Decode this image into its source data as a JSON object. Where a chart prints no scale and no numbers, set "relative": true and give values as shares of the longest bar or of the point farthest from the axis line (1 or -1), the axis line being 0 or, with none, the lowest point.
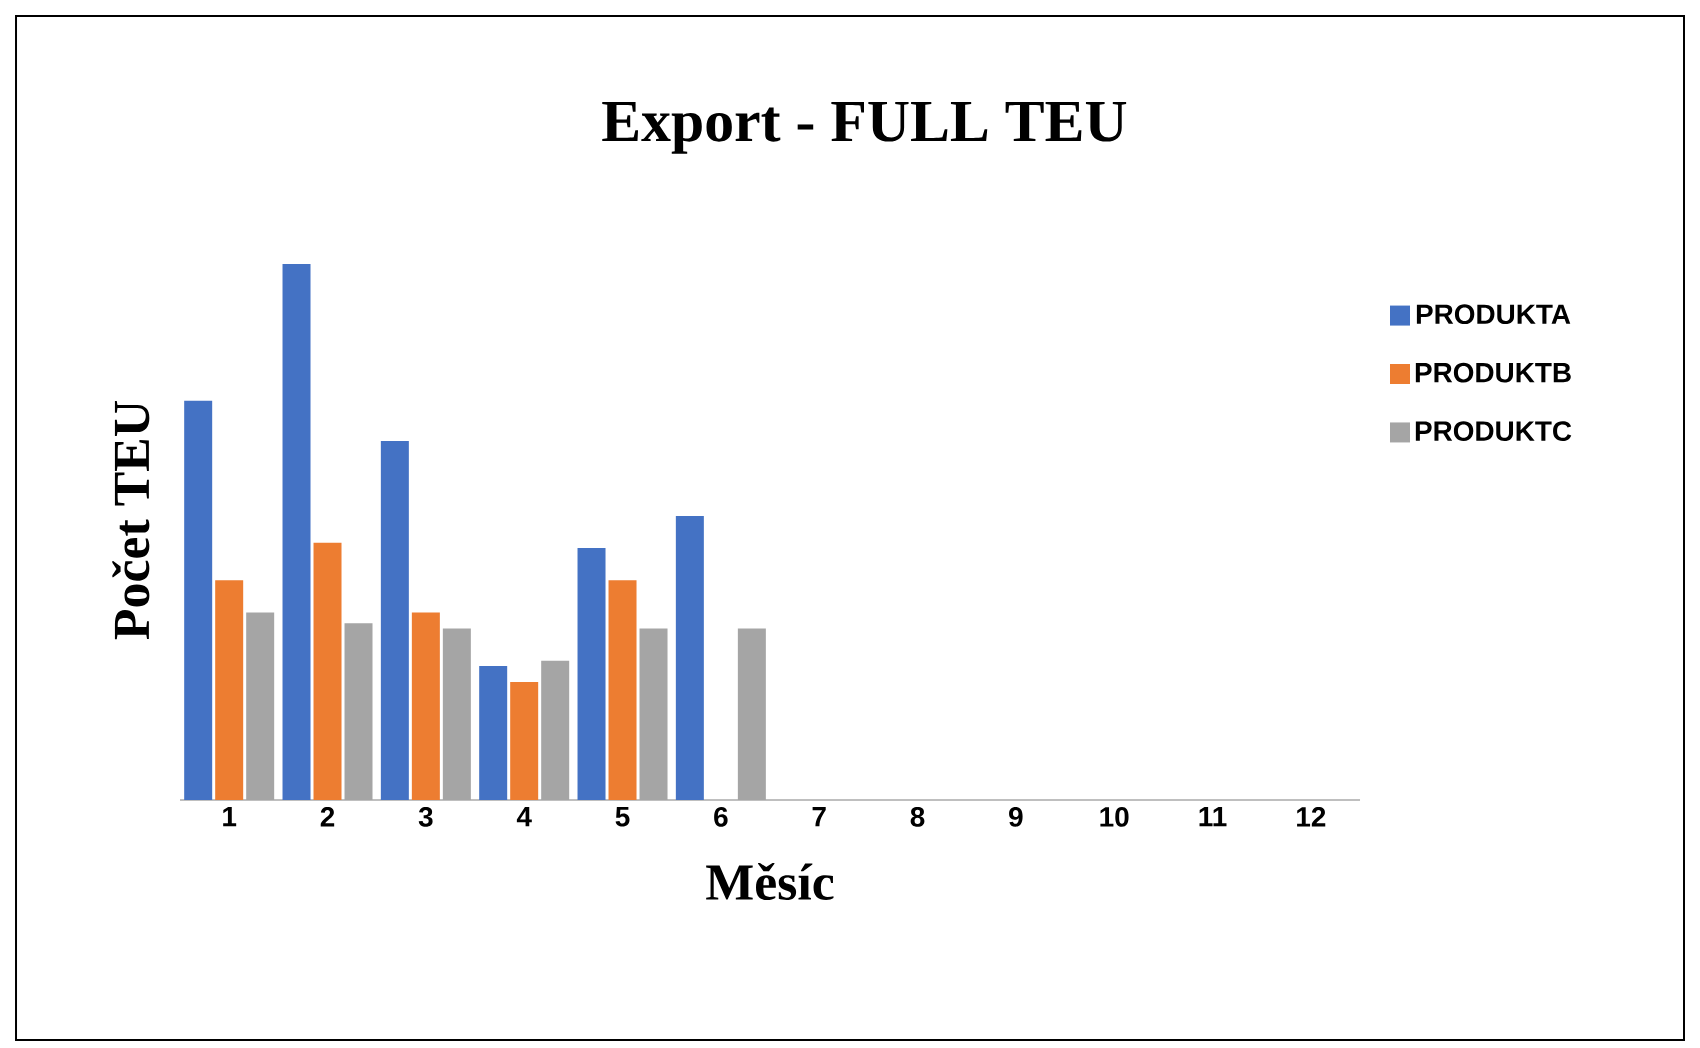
{
  "chart_data": {
    "type": "bar",
    "title": "Export  - FULL TEU",
    "xlabel": "Měsíc",
    "ylabel": "Počet TEU",
    "relative": true,
    "legend": "right",
    "categories": [
      "1",
      "2",
      "3",
      "4",
      "5",
      "6",
      "7",
      "8",
      "9",
      "10",
      "11",
      "12"
    ],
    "series": [
      {
        "name": "PRODUKTA",
        "color": "#4472c4",
        "values": [
          0.745,
          1,
          0.67,
          0.25,
          0.47,
          0.53,
          null,
          null,
          null,
          null,
          null,
          null
        ]
      },
      {
        "name": "PRODUKTB",
        "color": "#ed7d31",
        "values": [
          0.41,
          0.48,
          0.35,
          0.22,
          0.41,
          null,
          null,
          null,
          null,
          null,
          null,
          null
        ]
      },
      {
        "name": "PRODUKTC",
        "color": "#a5a5a5",
        "values": [
          0.35,
          0.33,
          0.32,
          0.26,
          0.32,
          0.32,
          null,
          null,
          null,
          null,
          null,
          null
        ]
      }
    ]
  }
}
